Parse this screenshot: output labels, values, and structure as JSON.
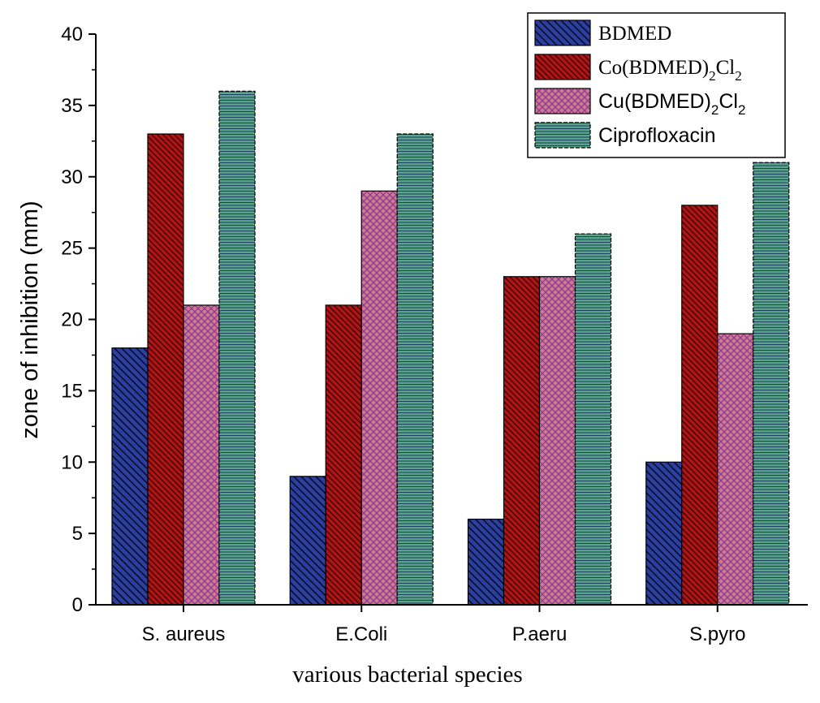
{
  "chart_data": {
    "type": "bar",
    "title": "",
    "xlabel": "various bacterial species",
    "ylabel": "zone of inhibition (mm)",
    "ylim": [
      0,
      40
    ],
    "yticks": [
      "0",
      "5",
      "10",
      "15",
      "20",
      "25",
      "30",
      "35",
      "40"
    ],
    "categories": [
      "S. aureus",
      "E.Coli",
      "P.aeru",
      "S.pyro"
    ],
    "legend_position": "top-right",
    "series": [
      {
        "name": "BDMED",
        "legend_parts": [
          [
            "BDMED",
            "n"
          ]
        ],
        "values": [
          18,
          9,
          6,
          10
        ],
        "color": "#2b3f9e",
        "pattern": "diagonal-back"
      },
      {
        "name": "Co(BDMED)2Cl2",
        "legend_parts": [
          [
            "Co(BDMED)",
            "n"
          ],
          [
            "2",
            "s"
          ],
          [
            "Cl",
            "n"
          ],
          [
            "2",
            "s"
          ]
        ],
        "values": [
          33,
          21,
          23,
          28
        ],
        "color": "#b01515",
        "pattern": "diagonal-back-dense"
      },
      {
        "name": "Cu(BDMED)2Cl2",
        "legend_parts": [
          [
            "Cu(BDMED)",
            "n"
          ],
          [
            "2",
            "s"
          ],
          [
            "Cl",
            "n"
          ],
          [
            "2",
            "s"
          ]
        ],
        "values": [
          21,
          29,
          23,
          19
        ],
        "color": "#c4677f",
        "pattern": "crosshatch"
      },
      {
        "name": "Ciprofloxacin",
        "legend_parts": [
          [
            "Ciprofloxacin",
            "n"
          ]
        ],
        "values": [
          36,
          33,
          26,
          31
        ],
        "color": "#4f9a7d",
        "pattern": "horizontal"
      }
    ]
  }
}
